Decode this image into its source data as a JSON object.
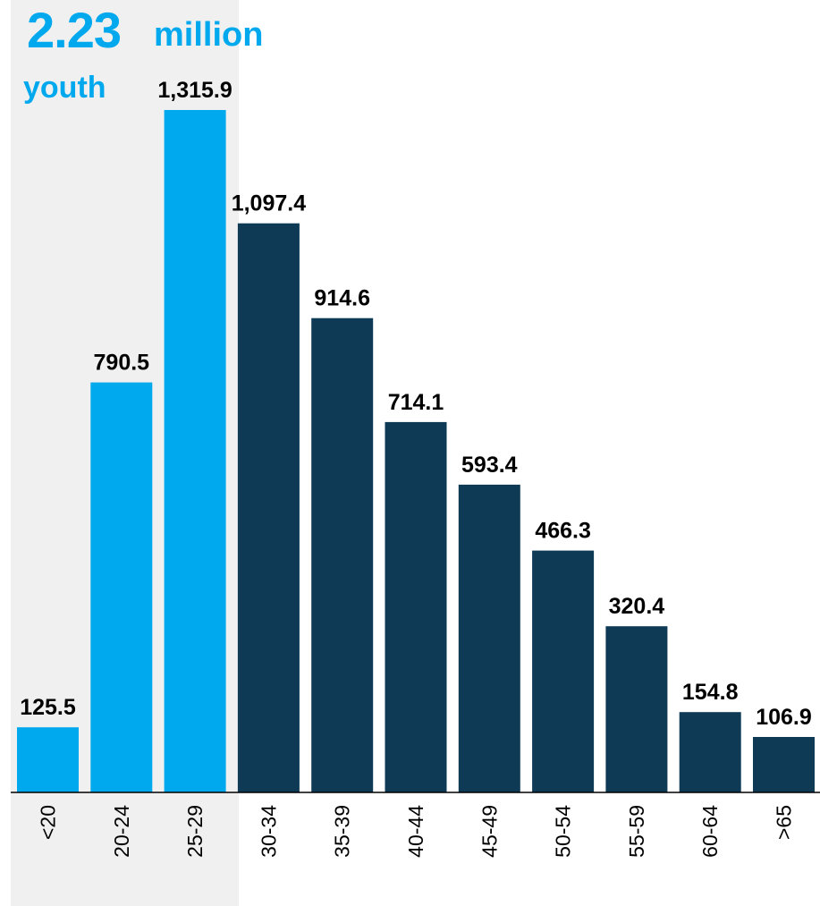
{
  "callout": {
    "value": "2.23",
    "unit": "million",
    "label": "youth"
  },
  "colors": {
    "youth_bar": "#00a8ee",
    "other_bar": "#0e3a56",
    "highlight_band": "#f0f0f0",
    "label_text": "#000000"
  },
  "chart_data": {
    "type": "bar",
    "categories": [
      "<20",
      "20-24",
      "25-29",
      "30-34",
      "35-39",
      "40-44",
      "45-49",
      "50-54",
      "55-59",
      "60-64",
      ">65"
    ],
    "values": [
      125.5,
      790.5,
      1315.9,
      1097.4,
      914.6,
      714.1,
      593.4,
      466.3,
      320.4,
      154.8,
      106.9
    ],
    "value_labels": [
      "125.5",
      "790.5",
      "1,315.9",
      "1,097.4",
      "914.6",
      "714.1",
      "593.4",
      "466.3",
      "320.4",
      "154.8",
      "106.9"
    ],
    "highlighted_categories": [
      "<20",
      "20-24",
      "25-29"
    ],
    "title": "",
    "xlabel": "",
    "ylabel": "",
    "ylim": [
      0,
      1315.9
    ],
    "grid": false,
    "legend": "none",
    "tick_label_orientation": "vertical"
  }
}
